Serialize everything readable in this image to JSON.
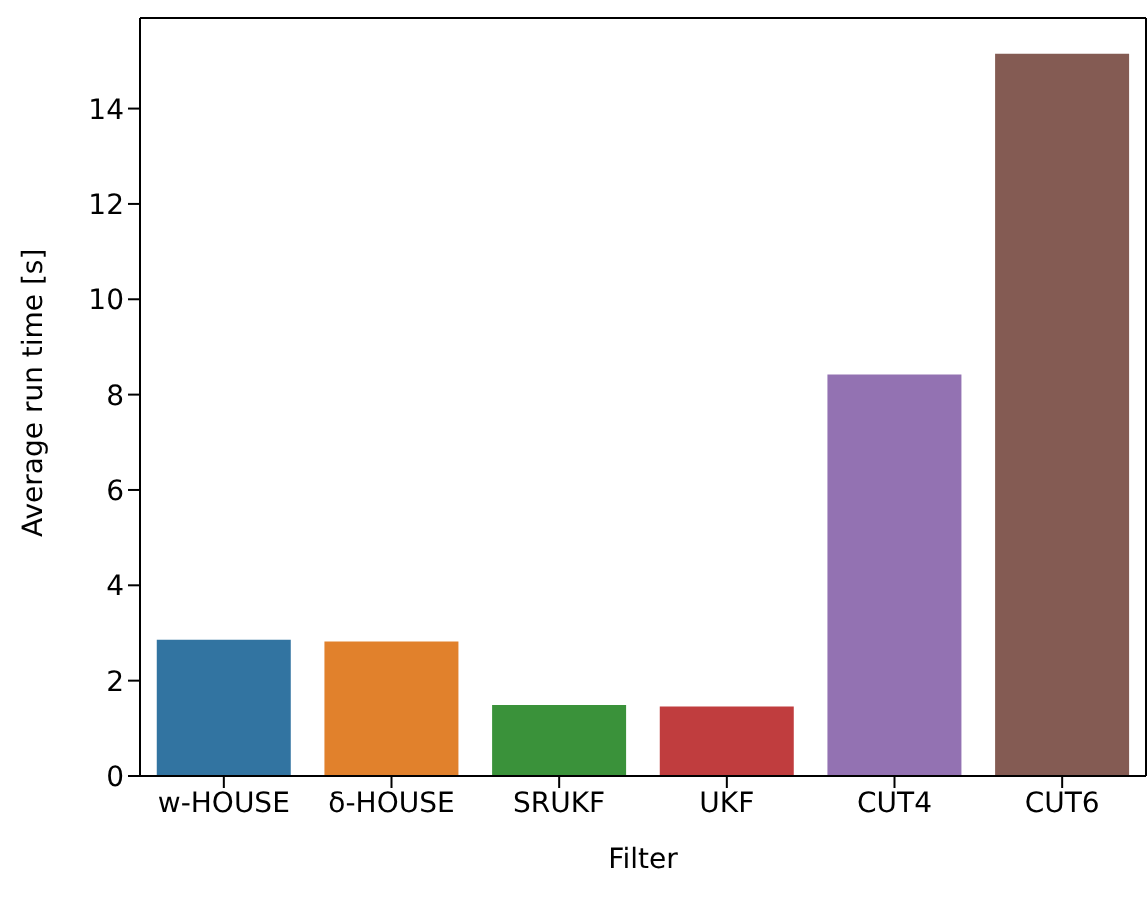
{
  "chart_data": {
    "type": "bar",
    "xlabel": "Filter",
    "ylabel": "Average run time [s]",
    "categories": [
      "w-HOUSE",
      "δ-HOUSE",
      "SRUKF",
      "UKF",
      "CUT4",
      "CUT6"
    ],
    "values": [
      2.86,
      2.82,
      1.49,
      1.46,
      8.42,
      15.15
    ],
    "colors": [
      "#3274a1",
      "#e1812c",
      "#3a923a",
      "#c03d3e",
      "#9372b2",
      "#845b53"
    ],
    "ylim": [
      0,
      15.9
    ],
    "yticks": [
      0,
      2,
      4,
      6,
      8,
      10,
      12,
      14
    ],
    "grid": false,
    "legend": false
  }
}
